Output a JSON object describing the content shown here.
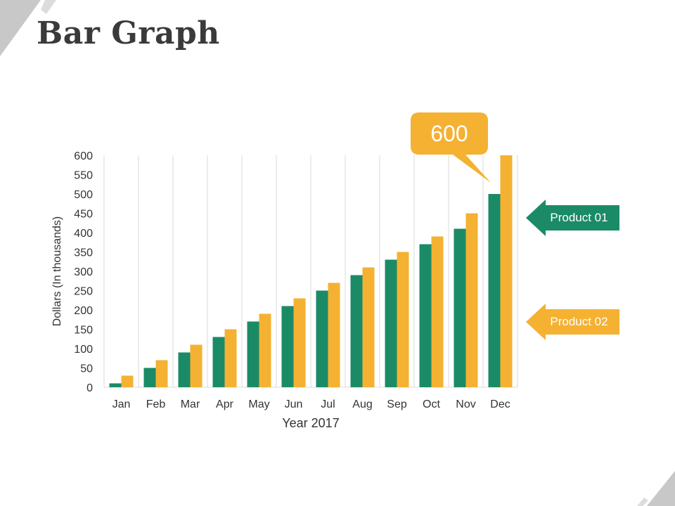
{
  "header": {
    "title": "Bar Graph"
  },
  "colors": {
    "product_01": "#1b8a67",
    "product_02": "#f5b132",
    "grid": "#d9d9d9",
    "corner": "#c8c8c8"
  },
  "chart_data": {
    "type": "bar",
    "categories": [
      "Jan",
      "Feb",
      "Mar",
      "Apr",
      "May",
      "Jun",
      "Jul",
      "Aug",
      "Sep",
      "Oct",
      "Nov",
      "Dec"
    ],
    "series": [
      {
        "name": "Product 01",
        "values": [
          10,
          50,
          90,
          130,
          170,
          210,
          250,
          290,
          330,
          370,
          410,
          500
        ]
      },
      {
        "name": "Product 02",
        "values": [
          30,
          70,
          110,
          150,
          190,
          230,
          270,
          310,
          350,
          390,
          450,
          600
        ]
      }
    ],
    "xlabel": "Year 2017",
    "ylabel": "Dollars (In thousands)",
    "ylim": [
      0,
      600
    ],
    "yticks": [
      0,
      50,
      100,
      150,
      200,
      250,
      300,
      350,
      400,
      450,
      500,
      550,
      600
    ],
    "grid": "vertical",
    "legend_placement": "right",
    "annotation": {
      "text": "600",
      "target": "Dec Product 02"
    }
  }
}
